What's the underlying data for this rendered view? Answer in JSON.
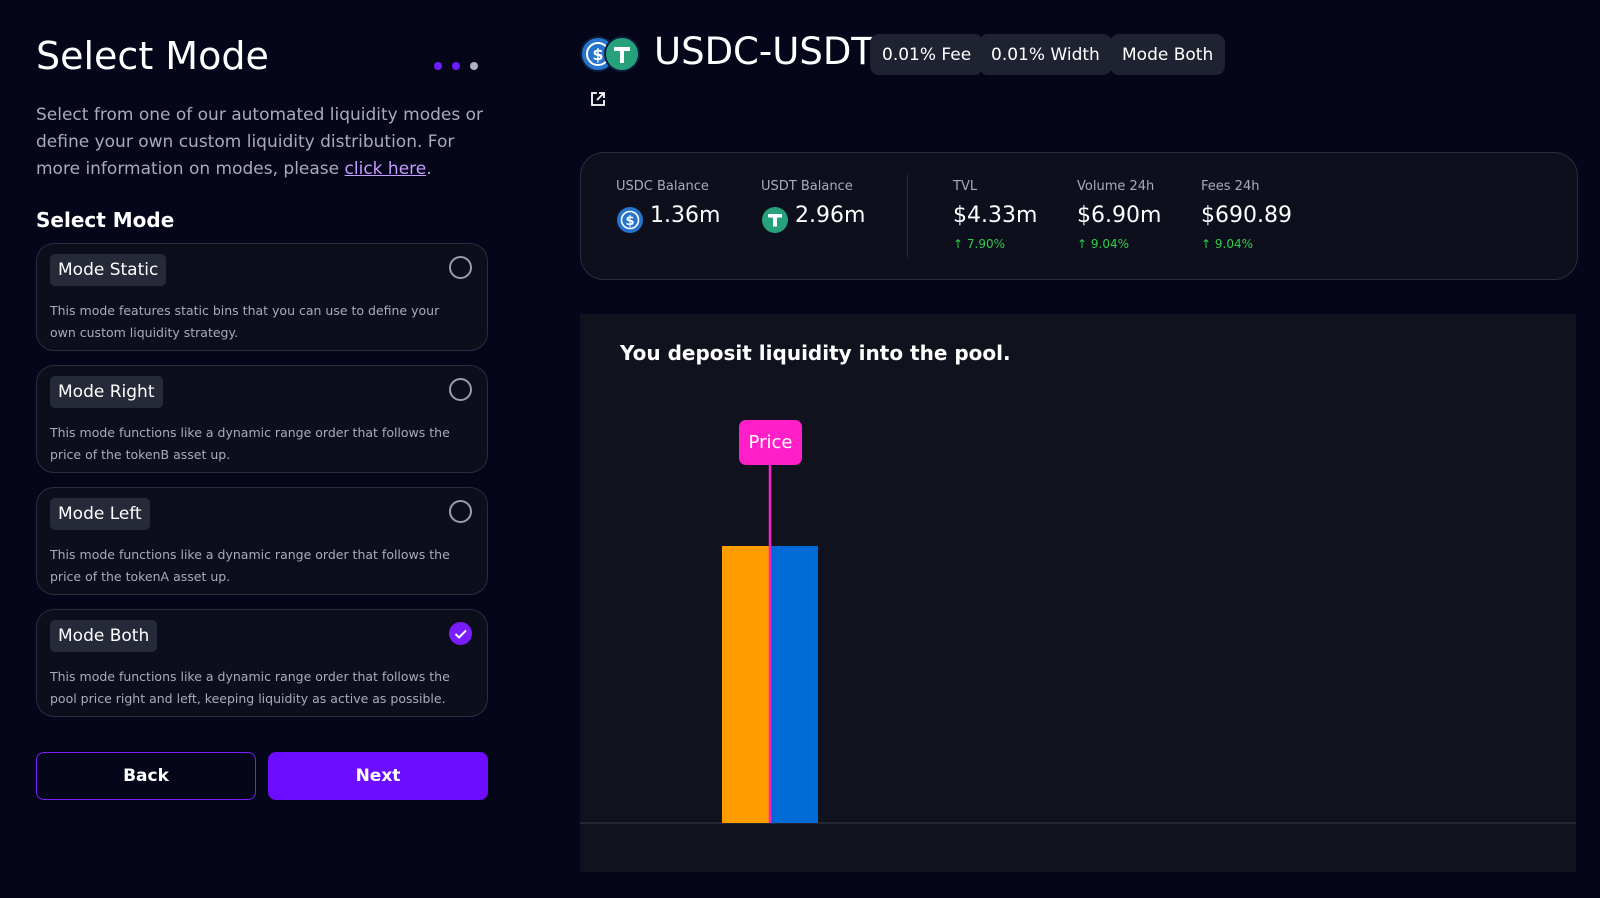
{
  "sidebar": {
    "title": "Select Mode",
    "description": {
      "text": "Select from one of our automated liquidity modes or define your own custom liquidity distribution. For more information on modes, please ",
      "link_text": "click here",
      "suffix": "."
    },
    "section_title": "Select Mode",
    "modes": [
      {
        "name": "Mode Static",
        "description": "This mode features static bins that you can use to define your own custom liquidity strategy.",
        "selected": false
      },
      {
        "name": "Mode Right",
        "description": "This mode functions like a dynamic range order that follows the price of the tokenB asset up.",
        "selected": false
      },
      {
        "name": "Mode Left",
        "description": "This mode functions like a dynamic range order that follows the price of the tokenA asset up.",
        "selected": false
      },
      {
        "name": "Mode Both",
        "description": "This mode functions like a dynamic range order that follows the pool price right and left, keeping liquidity as active as possible.",
        "selected": true
      }
    ],
    "buttons": {
      "back": "Back",
      "next": "Next"
    }
  },
  "pool": {
    "pair": "USDC-USDT",
    "badges": [
      "0.01% Fee",
      "0.01% Width",
      "Mode Both"
    ],
    "stats": [
      {
        "label": "USDC Balance",
        "value": "1.36m"
      },
      {
        "label": "USDT Balance",
        "value": "2.96m"
      },
      {
        "label": "TVL",
        "value": "$4.33m",
        "change": "7.90%"
      },
      {
        "label": "Volume 24h",
        "value": "$6.90m",
        "change": "9.04%"
      },
      {
        "label": "Fees 24h",
        "value": "$690.89",
        "change": "9.04%"
      }
    ]
  },
  "illustration": {
    "title": "You deposit liquidity into the pool.",
    "price_label": "Price"
  }
}
